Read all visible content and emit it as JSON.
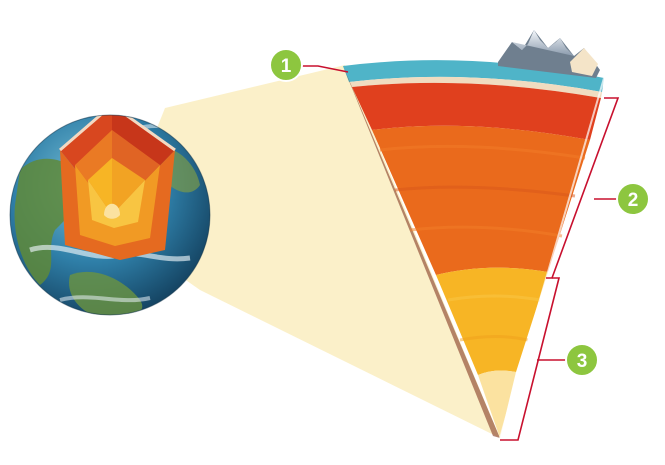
{
  "callouts": [
    {
      "label": "1"
    },
    {
      "label": "2"
    },
    {
      "label": "3"
    }
  ],
  "colors": {
    "badge_fill": "#8dc63f",
    "badge_text": "#ffffff",
    "leader_line": "#c8102e",
    "projection": "#fbefc4",
    "ocean": "#2f7fa8",
    "land": "#5f8a3a",
    "crust_water": "#4fb4c8",
    "mantle_upper": "#e0401e",
    "mantle_lower": "#ea6a1c",
    "outer_core": "#f7b525",
    "inner_core": "#fbe2a0"
  }
}
